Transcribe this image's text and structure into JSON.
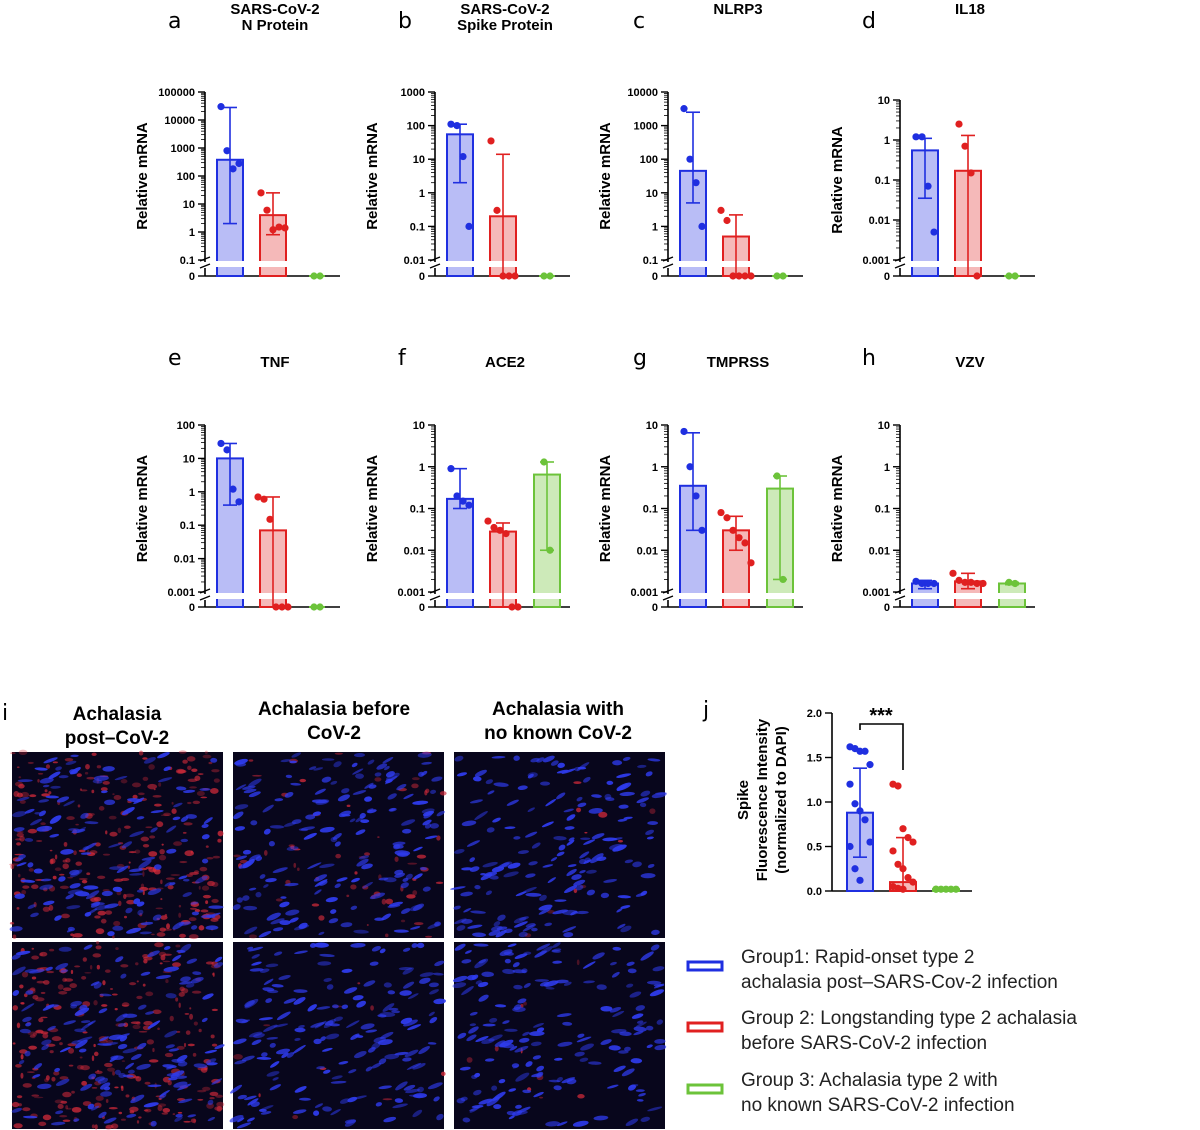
{
  "panels": [
    {
      "letter": "a",
      "title": [
        "SARS-CoV-2",
        "N Protein"
      ],
      "ylabel": "Relative mRNA",
      "ticks": [
        "100000",
        "10000",
        "1000",
        "100",
        "10",
        "1",
        "0.1"
      ],
      "top_exp": 5,
      "bottom_exp": -1,
      "groups": [
        {
          "mean": 380,
          "err_low": 2,
          "err_high": 28000,
          "points": [
            30000,
            800,
            180,
            280
          ]
        },
        {
          "mean": 4,
          "err_low": 0.8,
          "err_high": 25,
          "points": [
            25,
            6,
            1.2,
            1.5,
            1.4
          ]
        },
        {
          "mean": 0,
          "err_low": 0,
          "err_high": 0,
          "points": [
            0,
            0
          ]
        }
      ]
    },
    {
      "letter": "b",
      "title": [
        "SARS-CoV-2",
        "Spike Protein"
      ],
      "ylabel": "Relative mRNA",
      "ticks": [
        "1000",
        "100",
        "10",
        "1",
        "0.1",
        "0.01"
      ],
      "top_exp": 3,
      "bottom_exp": -2,
      "groups": [
        {
          "mean": 55,
          "err_low": 2,
          "err_high": 110,
          "points": [
            110,
            100,
            12,
            0.1
          ]
        },
        {
          "mean": 0.2,
          "err_low": 0,
          "err_high": 14,
          "points": [
            35,
            0.3,
            0,
            0,
            0
          ]
        },
        {
          "mean": 0,
          "err_low": 0,
          "err_high": 0,
          "points": [
            0,
            0
          ]
        }
      ]
    },
    {
      "letter": "c",
      "title": [
        "NLRP3"
      ],
      "ylabel": "Relative mRNA",
      "ticks": [
        "10000",
        "1000",
        "100",
        "10",
        "1",
        "0.1"
      ],
      "top_exp": 4,
      "bottom_exp": -1,
      "groups": [
        {
          "mean": 45,
          "err_low": 5,
          "err_high": 2500,
          "points": [
            3200,
            100,
            20,
            1
          ]
        },
        {
          "mean": 0.5,
          "err_low": 0,
          "err_high": 2.2,
          "points": [
            3,
            1.5,
            0,
            0,
            0,
            0
          ]
        },
        {
          "mean": 0,
          "err_low": 0,
          "err_high": 0,
          "points": [
            0,
            0
          ]
        }
      ]
    },
    {
      "letter": "d",
      "title": [
        "IL18"
      ],
      "ylabel": "Relative mRNA",
      "ticks": [
        "10",
        "1",
        "0.1",
        "0.01",
        "0.001"
      ],
      "top_exp": 1,
      "bottom_exp": -3,
      "groups": [
        {
          "mean": 0.55,
          "err_low": 0.035,
          "err_high": 1.1,
          "points": [
            1.2,
            1.2,
            0.07,
            0.005
          ]
        },
        {
          "mean": 0.17,
          "err_low": 0,
          "err_high": 1.3,
          "points": [
            2.5,
            0.7,
            0.15,
            0
          ]
        },
        {
          "mean": 0,
          "err_low": 0,
          "err_high": 0,
          "points": [
            0,
            0
          ]
        }
      ]
    },
    {
      "letter": "e",
      "title": [
        "TNF"
      ],
      "ylabel": "Relative mRNA",
      "ticks": [
        "100",
        "10",
        "1",
        "0.1",
        "0.01",
        "0.001"
      ],
      "top_exp": 2,
      "bottom_exp": -3,
      "groups": [
        {
          "mean": 10,
          "err_low": 0.4,
          "err_high": 28,
          "points": [
            28,
            18,
            1.2,
            0.5
          ]
        },
        {
          "mean": 0.07,
          "err_low": 0,
          "err_high": 0.7,
          "points": [
            0.7,
            0.6,
            0.15,
            0,
            0,
            0
          ]
        },
        {
          "mean": 0,
          "err_low": 0,
          "err_high": 0,
          "points": [
            0,
            0
          ]
        }
      ]
    },
    {
      "letter": "f",
      "title": [
        "ACE2"
      ],
      "ylabel": "Relative mRNA",
      "ticks": [
        "10",
        "1",
        "0.1",
        "0.01",
        "0.001"
      ],
      "top_exp": 1,
      "bottom_exp": -3,
      "groups": [
        {
          "mean": 0.17,
          "err_low": 0.1,
          "err_high": 0.9,
          "points": [
            0.9,
            0.2,
            0.15,
            0.12
          ]
        },
        {
          "mean": 0.028,
          "err_low": 0,
          "err_high": 0.045,
          "points": [
            0.05,
            0.035,
            0.03,
            0.025,
            0,
            0
          ]
        },
        {
          "mean": 0.65,
          "err_low": 0.01,
          "err_high": 1.3,
          "points": [
            1.3,
            0.01
          ]
        }
      ]
    },
    {
      "letter": "g",
      "title": [
        "TMPRSS"
      ],
      "ylabel": "Relative mRNA",
      "ticks": [
        "10",
        "1",
        "0.1",
        "0.01",
        "0.001"
      ],
      "top_exp": 1,
      "bottom_exp": -3,
      "groups": [
        {
          "mean": 0.35,
          "err_low": 0.03,
          "err_high": 6.5,
          "points": [
            7,
            1,
            0.2,
            0.03
          ]
        },
        {
          "mean": 0.03,
          "err_low": 0.01,
          "err_high": 0.065,
          "points": [
            0.08,
            0.06,
            0.03,
            0.02,
            0.015,
            0.005
          ]
        },
        {
          "mean": 0.3,
          "err_low": 0.002,
          "err_high": 0.6,
          "points": [
            0.6,
            0.002
          ]
        }
      ]
    },
    {
      "letter": "h",
      "title": [
        "VZV"
      ],
      "ylabel": "Relative mRNA",
      "ticks": [
        "10",
        "1",
        "0.1",
        "0.01",
        "0.001"
      ],
      "top_exp": 1,
      "bottom_exp": -3,
      "groups": [
        {
          "mean": 0.0016,
          "err_low": 0.0012,
          "err_high": 0.0019,
          "points": [
            0.0018,
            0.0016,
            0.0016,
            0.0016
          ]
        },
        {
          "mean": 0.0018,
          "err_low": 0.0012,
          "err_high": 0.0028,
          "points": [
            0.0028,
            0.0019,
            0.0017,
            0.0017,
            0.0016,
            0.0016
          ]
        },
        {
          "mean": 0.0016,
          "err_low": 0.0015,
          "err_high": 0.0017,
          "points": [
            0.0017,
            0.0016
          ]
        }
      ]
    }
  ],
  "panel_i": {
    "letter": "i",
    "columns": [
      {
        "title": [
          "Achalasia",
          "post–CoV-2"
        ]
      },
      {
        "title": [
          "Achalasia before",
          "CoV-2"
        ]
      },
      {
        "title": [
          "Achalasia with",
          "no known CoV-2"
        ]
      }
    ]
  },
  "panel_j": {
    "letter": "j",
    "ylabel": [
      "Spike",
      "Fluorescence Intensity",
      "(normalized to  DAPI)"
    ],
    "ticks": [
      "2.0",
      "1.5",
      "1.0",
      "0.5",
      "0.0"
    ],
    "significance": "***",
    "groups": [
      {
        "mean": 0.88,
        "err_high": 1.38,
        "err_low": 0.38,
        "points": [
          1.62,
          1.6,
          1.57,
          1.57,
          1.42,
          1.2,
          0.98,
          0.9,
          0.8,
          0.55,
          0.5,
          0.25,
          0.12
        ]
      },
      {
        "mean": 0.1,
        "err_high": 0.6,
        "err_low": 0,
        "points": [
          1.2,
          1.18,
          0.7,
          0.6,
          0.55,
          0.45,
          0.3,
          0.25,
          0.15,
          0.1,
          0.05,
          0.03,
          0.02
        ]
      },
      {
        "mean": 0.02,
        "err_high": 0.02,
        "err_low": 0,
        "points": [
          0.02,
          0.02,
          0.02,
          0.02,
          0.02,
          0.02
        ]
      }
    ]
  },
  "legend": [
    {
      "color": "#1f2fe0",
      "lines": [
        "Group1: Rapid-onset type 2",
        "achalasia post–SARS-Cov-2 infection"
      ]
    },
    {
      "color": "#e02020",
      "lines": [
        "Group 2: Longstanding type 2 achalasia",
        "before SARS-CoV-2 infection"
      ]
    },
    {
      "color": "#6cc33a",
      "lines": [
        "Group 3: Achalasia type 2 with",
        "no known SARS-CoV-2 infection"
      ]
    }
  ],
  "colors": {
    "blue": "#1f2fe0",
    "blue_fill": "#b9bdf6",
    "red": "#e02020",
    "red_fill": "#f5b9b9",
    "green": "#6cc33a",
    "green_fill": "#cdeab9"
  }
}
